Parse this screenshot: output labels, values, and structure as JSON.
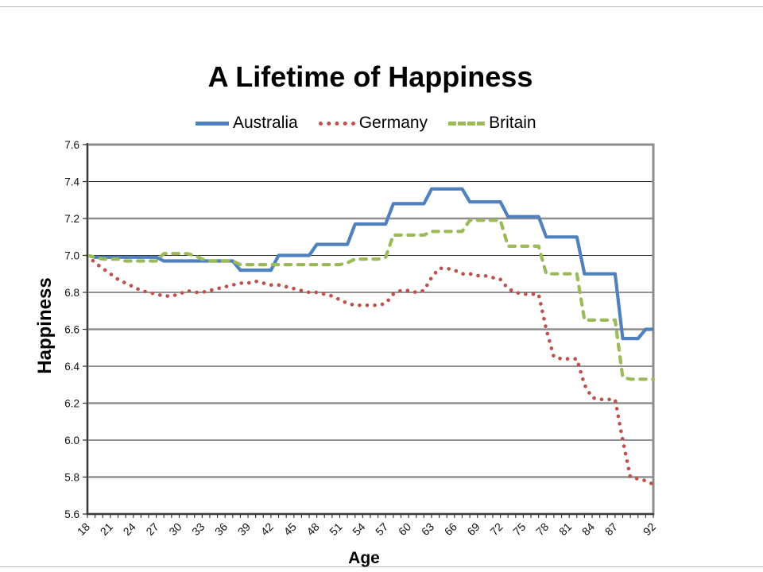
{
  "chart": {
    "title": "A Lifetime of Happiness",
    "x_axis_title": "Age",
    "y_axis_title": "Happiness",
    "legend": [
      {
        "label": "Australia",
        "style": "solid",
        "color": "#4F81BD"
      },
      {
        "label": "Germany",
        "style": "dotted",
        "color": "#C0504D"
      },
      {
        "label": "Britain",
        "style": "dashed",
        "color": "#9BBB59"
      }
    ]
  },
  "chart_data": {
    "type": "line",
    "title": "A Lifetime of Happiness",
    "xlabel": "Age",
    "ylabel": "Happiness",
    "ylim": [
      5.6,
      7.6
    ],
    "y_tick_step": 0.2,
    "y_tick_labels": [
      "7.6",
      "7.4",
      "7.2",
      "7.0",
      "6.8",
      "6.6",
      "6.4",
      "6.2",
      "6.0",
      "5.8",
      "5.6"
    ],
    "x_start": 18,
    "x_end": 92,
    "x_step": 1,
    "x_tick_labels": [
      18,
      21,
      24,
      27,
      30,
      33,
      36,
      39,
      42,
      45,
      48,
      51,
      54,
      57,
      60,
      63,
      66,
      69,
      72,
      75,
      78,
      81,
      84,
      87,
      92
    ],
    "grid": "horizontal",
    "legend_position": "top-center",
    "series": [
      {
        "name": "Australia",
        "color": "#4F81BD",
        "style": "solid",
        "values": [
          7.0,
          6.99,
          6.99,
          6.99,
          6.99,
          6.99,
          6.99,
          6.99,
          6.99,
          6.99,
          6.97,
          6.97,
          6.97,
          6.97,
          6.97,
          6.97,
          6.97,
          6.97,
          6.97,
          6.97,
          6.92,
          6.92,
          6.92,
          6.92,
          6.92,
          7.0,
          7.0,
          7.0,
          7.0,
          7.0,
          7.06,
          7.06,
          7.06,
          7.06,
          7.06,
          7.17,
          7.17,
          7.17,
          7.17,
          7.17,
          7.28,
          7.28,
          7.28,
          7.28,
          7.28,
          7.36,
          7.36,
          7.36,
          7.36,
          7.36,
          7.29,
          7.29,
          7.29,
          7.29,
          7.29,
          7.21,
          7.21,
          7.21,
          7.21,
          7.21,
          7.1,
          7.1,
          7.1,
          7.1,
          7.1,
          6.9,
          6.9,
          6.9,
          6.9,
          6.9,
          6.55,
          6.55,
          6.55,
          6.6,
          6.6
        ]
      },
      {
        "name": "Germany",
        "color": "#C0504D",
        "style": "dotted",
        "values": [
          7.0,
          6.96,
          6.93,
          6.9,
          6.87,
          6.85,
          6.83,
          6.81,
          6.8,
          6.79,
          6.78,
          6.78,
          6.79,
          6.81,
          6.8,
          6.8,
          6.81,
          6.82,
          6.83,
          6.84,
          6.85,
          6.85,
          6.86,
          6.85,
          6.84,
          6.84,
          6.83,
          6.82,
          6.81,
          6.8,
          6.8,
          6.79,
          6.78,
          6.76,
          6.74,
          6.73,
          6.73,
          6.73,
          6.73,
          6.74,
          6.79,
          6.81,
          6.81,
          6.8,
          6.81,
          6.88,
          6.93,
          6.93,
          6.92,
          6.9,
          6.9,
          6.89,
          6.89,
          6.88,
          6.87,
          6.82,
          6.8,
          6.79,
          6.79,
          6.79,
          6.6,
          6.45,
          6.44,
          6.44,
          6.44,
          6.3,
          6.23,
          6.22,
          6.22,
          6.22,
          6.0,
          5.8,
          5.79,
          5.78,
          5.76
        ]
      },
      {
        "name": "Britain",
        "color": "#9BBB59",
        "style": "dashed",
        "values": [
          7.0,
          6.99,
          6.98,
          6.98,
          6.98,
          6.97,
          6.97,
          6.97,
          6.97,
          6.97,
          7.01,
          7.01,
          7.01,
          7.01,
          7.0,
          6.98,
          6.97,
          6.97,
          6.97,
          6.97,
          6.95,
          6.95,
          6.95,
          6.95,
          6.95,
          6.95,
          6.95,
          6.95,
          6.95,
          6.95,
          6.95,
          6.95,
          6.95,
          6.95,
          6.96,
          6.98,
          6.98,
          6.98,
          6.98,
          6.99,
          7.11,
          7.11,
          7.11,
          7.11,
          7.11,
          7.13,
          7.13,
          7.13,
          7.13,
          7.13,
          7.19,
          7.19,
          7.19,
          7.19,
          7.19,
          7.05,
          7.05,
          7.05,
          7.05,
          7.05,
          6.9,
          6.9,
          6.9,
          6.9,
          6.9,
          6.65,
          6.65,
          6.65,
          6.65,
          6.65,
          6.34,
          6.33,
          6.33,
          6.33,
          6.33
        ]
      }
    ]
  },
  "style": {
    "plot_border_color": "#8c8c8c",
    "axis_spine_color": "#3b3b3b",
    "gridline_color": "#262626",
    "emphasized_gridline_color": "#8f8f8f",
    "emphasized_gridlines": [
      7.2,
      6.6,
      6.2,
      5.8
    ],
    "background": "#ffffff"
  }
}
